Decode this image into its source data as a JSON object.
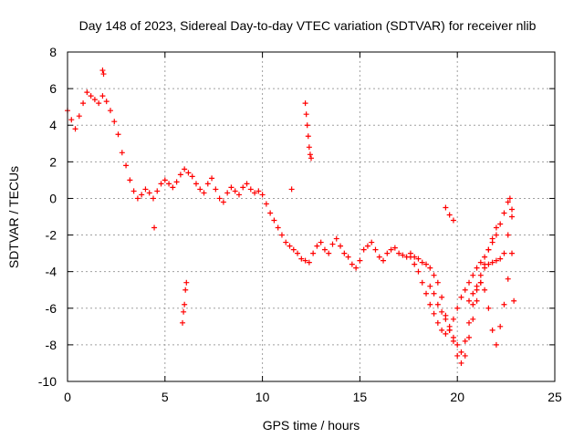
{
  "chart_data": {
    "type": "scatter",
    "title": "Day 148 of 2023, Sidereal Day-to-day VTEC variation (SDTVAR) for receiver nlib",
    "xlabel": "GPS time / hours",
    "ylabel": "SDTVAR / TECUs",
    "xlim": [
      0,
      25
    ],
    "ylim": [
      -10,
      8
    ],
    "xticks": [
      0,
      5,
      10,
      15,
      20,
      25
    ],
    "yticks": [
      -10,
      -8,
      -6,
      -4,
      -2,
      0,
      2,
      4,
      6,
      8
    ],
    "grid": true,
    "marker": "+",
    "color": "#ff0000",
    "series": [
      {
        "name": "main-trace",
        "x": [
          0.0,
          0.2,
          0.4,
          0.6,
          0.8,
          1.0,
          1.2,
          1.4,
          1.6,
          1.8,
          2.0,
          2.2,
          2.4,
          2.6,
          2.8,
          3.0,
          3.2,
          3.4,
          3.6,
          3.8,
          4.0,
          4.2,
          4.4,
          4.6,
          4.8,
          5.0,
          5.2,
          5.4,
          5.6,
          5.8,
          6.0,
          6.2,
          6.4,
          6.6,
          6.8,
          7.0,
          7.2,
          7.4,
          7.6,
          7.8,
          8.0,
          8.2,
          8.4,
          8.6,
          8.8,
          9.0,
          9.2,
          9.4,
          9.6,
          9.8,
          10.0,
          10.2,
          10.4,
          10.6,
          10.8,
          11.0,
          11.2,
          11.4,
          11.6,
          11.8,
          12.0,
          12.2,
          12.4,
          12.6,
          12.8,
          13.0,
          13.2,
          13.4,
          13.6,
          13.8,
          14.0,
          14.2,
          14.4,
          14.6,
          14.8,
          15.0,
          15.2,
          15.4,
          15.6,
          15.8,
          16.0,
          16.2,
          16.4,
          16.6,
          16.8,
          17.0,
          17.2,
          17.4,
          17.6,
          17.8,
          18.0,
          18.2,
          18.4,
          18.6,
          18.8,
          19.0,
          19.2,
          19.4,
          19.6,
          19.8,
          20.0,
          20.2,
          20.4,
          20.6,
          20.8,
          21.0,
          21.2,
          21.4,
          21.6,
          21.8,
          22.0,
          22.2,
          22.4,
          22.6,
          22.8
        ],
        "y": [
          4.8,
          4.3,
          3.8,
          4.5,
          5.2,
          5.8,
          5.6,
          5.4,
          5.2,
          5.6,
          5.3,
          4.8,
          4.2,
          3.5,
          2.5,
          1.8,
          1.0,
          0.4,
          0.0,
          0.2,
          0.5,
          0.3,
          0.0,
          0.4,
          0.8,
          1.0,
          0.8,
          0.6,
          0.9,
          1.3,
          1.6,
          1.4,
          1.2,
          0.8,
          0.5,
          0.3,
          0.8,
          1.1,
          0.5,
          0.0,
          -0.2,
          0.3,
          0.6,
          0.4,
          0.2,
          0.6,
          0.8,
          0.5,
          0.3,
          0.4,
          0.2,
          -0.3,
          -0.8,
          -1.2,
          -1.6,
          -2.0,
          -2.4,
          -2.6,
          -2.8,
          -3.0,
          -3.3,
          -3.4,
          -3.5,
          -3.0,
          -2.6,
          -2.4,
          -2.8,
          -3.0,
          -2.5,
          -2.2,
          -2.6,
          -3.0,
          -3.2,
          -3.6,
          -3.8,
          -3.4,
          -2.8,
          -2.6,
          -2.4,
          -2.8,
          -3.2,
          -3.4,
          -3.0,
          -2.8,
          -2.7,
          -3.0,
          -3.1,
          -3.2,
          -3.0,
          -3.2,
          -3.3,
          -3.5,
          -3.6,
          -3.8,
          -4.2,
          -4.6,
          -5.4,
          -6.4,
          -7.2,
          -7.6,
          -8.0,
          -8.4,
          -7.8,
          -6.8,
          -5.8,
          -5.0,
          -4.2,
          -3.8,
          -3.6,
          -3.5,
          -3.4,
          -3.3,
          -3.0,
          -2.0,
          -1.0
        ]
      },
      {
        "name": "diagonal-trace-a",
        "x": [
          17.6,
          17.8,
          18.0,
          18.2,
          18.4,
          18.6,
          18.8,
          19.0,
          19.2,
          19.4,
          19.6,
          19.8,
          20.0,
          20.2,
          20.4,
          20.6,
          20.8,
          21.0,
          21.2,
          21.4,
          21.6,
          21.8,
          22.0,
          22.2,
          22.4,
          22.6
        ],
        "y": [
          -3.2,
          -3.6,
          -4.0,
          -4.6,
          -5.2,
          -5.8,
          -6.3,
          -6.8,
          -7.2,
          -7.4,
          -7.2,
          -6.6,
          -6.0,
          -5.4,
          -5.0,
          -4.6,
          -4.2,
          -3.8,
          -3.5,
          -3.2,
          -2.8,
          -2.4,
          -2.0,
          -1.4,
          -0.8,
          -0.2
        ]
      },
      {
        "name": "diagonal-trace-b",
        "x": [
          18.6,
          18.8,
          19.0,
          19.2,
          19.4,
          19.6,
          19.8,
          20.0,
          20.2,
          20.4,
          20.6,
          20.8,
          21.0,
          21.2,
          21.4,
          21.6,
          21.8,
          22.0
        ],
        "y": [
          -4.8,
          -5.2,
          -5.8,
          -6.2,
          -6.6,
          -7.0,
          -7.8,
          -8.6,
          -9.0,
          -8.6,
          -7.6,
          -6.6,
          -5.6,
          -4.6,
          -3.6,
          -2.8,
          -2.2,
          -1.6
        ]
      },
      {
        "name": "diagonal-trace-c",
        "x": [
          20.6,
          20.8,
          21.0,
          21.2,
          21.4,
          21.6,
          21.8,
          22.0,
          22.2,
          22.4,
          22.6,
          22.8
        ],
        "y": [
          -5.6,
          -5.2,
          -4.8,
          -4.6,
          -5.0,
          -6.0,
          -7.2,
          -8.0,
          -7.0,
          -5.8,
          -4.4,
          -3.0
        ]
      },
      {
        "name": "outlier-cluster",
        "x": [
          1.8,
          1.85,
          4.45,
          5.9,
          5.95,
          6.0,
          6.05,
          6.1,
          12.2,
          12.25,
          12.3,
          12.35,
          12.4,
          12.45,
          12.5,
          11.5,
          19.4,
          19.6,
          19.8,
          22.7,
          22.8,
          22.9
        ],
        "y": [
          7.0,
          6.8,
          -1.6,
          -6.8,
          -6.2,
          -5.8,
          -5.0,
          -4.6,
          5.2,
          4.6,
          4.0,
          3.4,
          2.8,
          2.4,
          2.2,
          0.5,
          -0.5,
          -0.9,
          -1.2,
          0.0,
          -0.6,
          -5.6
        ]
      }
    ]
  }
}
